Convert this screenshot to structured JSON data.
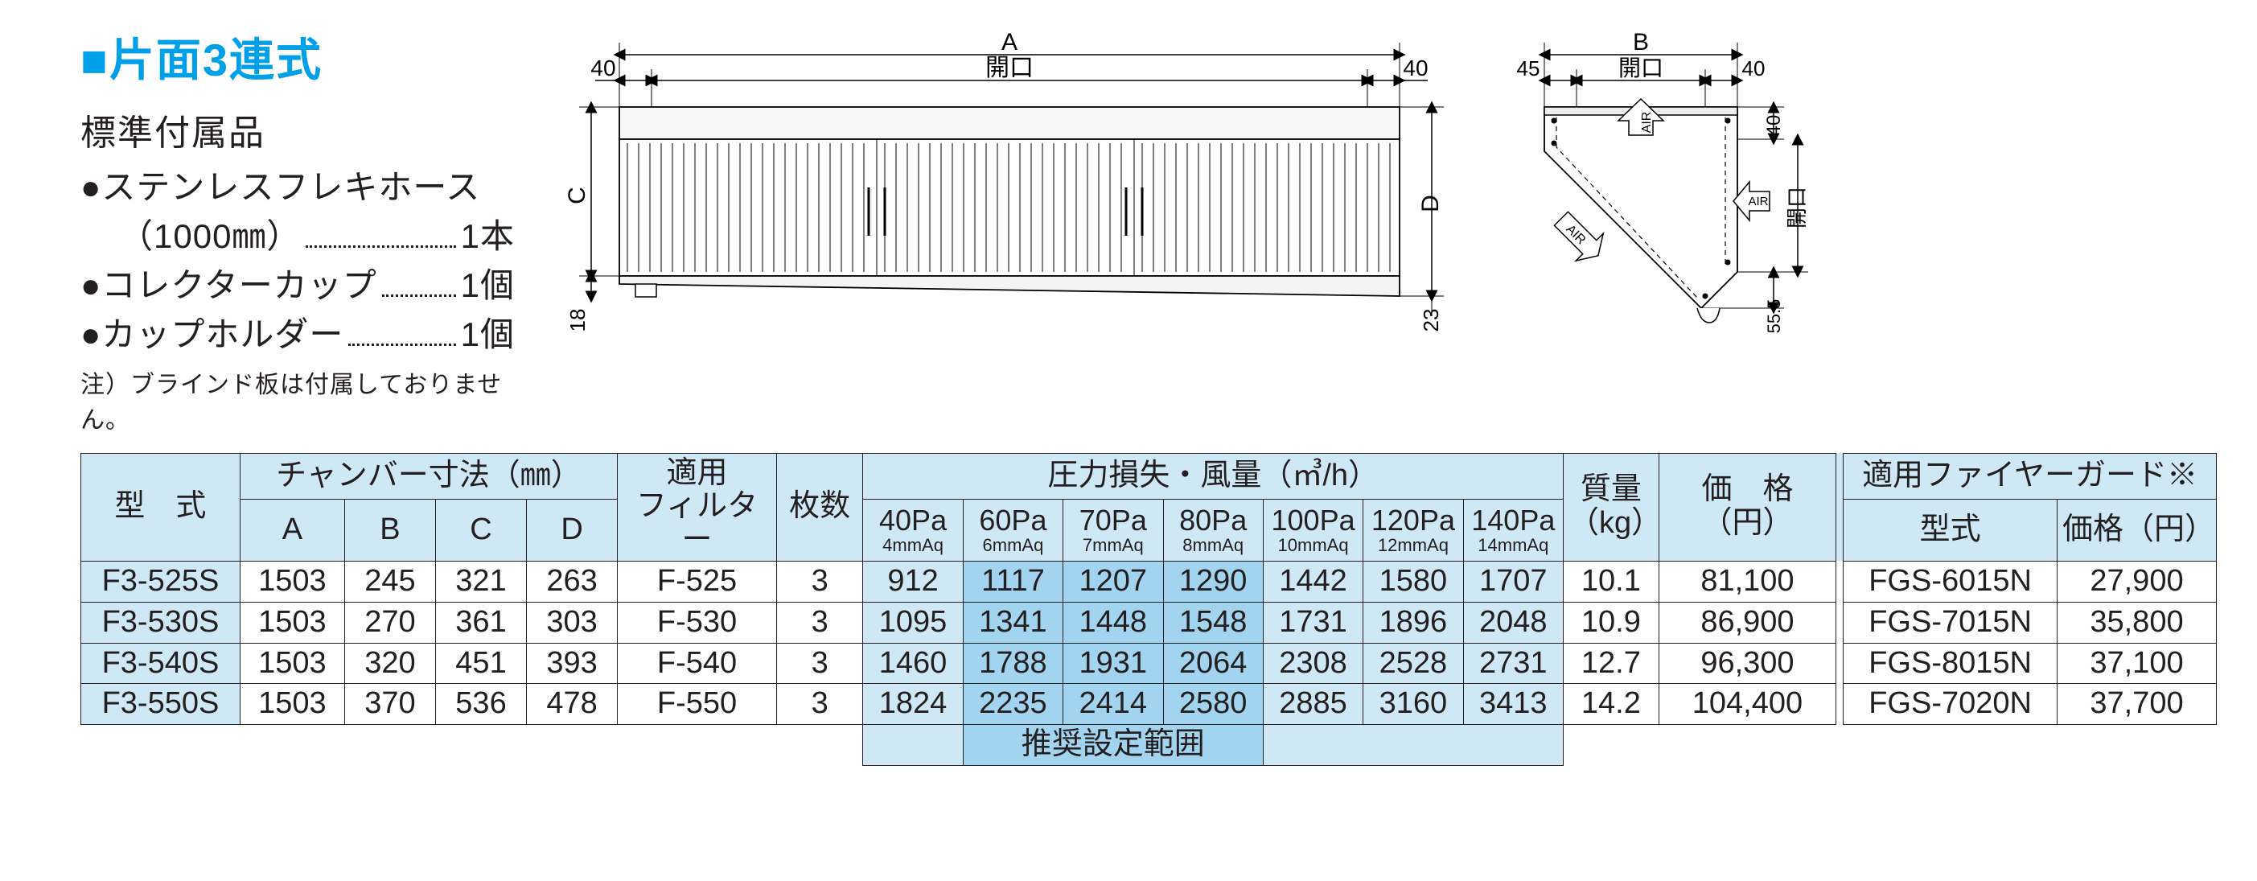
{
  "colors": {
    "accent_blue": "#00a0e9",
    "header_blue": "#cfe8f6",
    "range_blue": "#a2d4ef",
    "stroke": "#231f20",
    "bg": "#ffffff"
  },
  "title": "■片面3連式",
  "accessories_heading": "標準付属品",
  "accessories": [
    {
      "label": "●ステンレスフレキホース",
      "sub": "（1000㎜）",
      "qty": "1本"
    },
    {
      "label": "●コレクターカップ",
      "sub": "",
      "qty": "1個"
    },
    {
      "label": "●カップホルダー",
      "sub": "",
      "qty": "1個"
    }
  ],
  "footnote": "注）ブラインド板は付属しておりません。",
  "diagram": {
    "front": {
      "label_A": "A",
      "label_opening": "開口",
      "margin_left": "40",
      "margin_right": "40",
      "label_C": "C",
      "label_D": "D",
      "bottom_left": "18",
      "bottom_right": "23"
    },
    "side": {
      "label_B": "B",
      "label_opening": "開口",
      "margin_left": "45",
      "margin_right": "40",
      "top_gap": "40",
      "side_opening": "開口",
      "air_in": "AIR",
      "air_out": "AIR",
      "bottom_offset": "55.5"
    }
  },
  "table": {
    "headers": {
      "model": "型　式",
      "chamber_group": "チャンバー寸法（㎜）",
      "A": "A",
      "B": "B",
      "C": "C",
      "D": "D",
      "filter": "適用\nフィルター",
      "qty": "枚数",
      "pressure_group": "圧力損失・風量（㎥/h）",
      "pa": [
        {
          "pa": "40Pa",
          "aq": "4mmAq"
        },
        {
          "pa": "60Pa",
          "aq": "6mmAq"
        },
        {
          "pa": "70Pa",
          "aq": "7mmAq"
        },
        {
          "pa": "80Pa",
          "aq": "8mmAq"
        },
        {
          "pa": "100Pa",
          "aq": "10mmAq"
        },
        {
          "pa": "120Pa",
          "aq": "12mmAq"
        },
        {
          "pa": "140Pa",
          "aq": "14mmAq"
        }
      ],
      "mass": "質量\n（kg）",
      "price": "価　格\n（円）",
      "fg_group": "適用ファイヤーガード※",
      "fg_model": "型式",
      "fg_price": "価格（円）"
    },
    "rows": [
      {
        "model": "F3-525S",
        "A": "1503",
        "B": "245",
        "C": "321",
        "D": "263",
        "filter": "F-525",
        "qty": "3",
        "flow": [
          "912",
          "1117",
          "1207",
          "1290",
          "1442",
          "1580",
          "1707"
        ],
        "mass": "10.1",
        "price": "81,100",
        "fg_model": "FGS-6015N",
        "fg_price": "27,900"
      },
      {
        "model": "F3-530S",
        "A": "1503",
        "B": "270",
        "C": "361",
        "D": "303",
        "filter": "F-530",
        "qty": "3",
        "flow": [
          "1095",
          "1341",
          "1448",
          "1548",
          "1731",
          "1896",
          "2048"
        ],
        "mass": "10.9",
        "price": "86,900",
        "fg_model": "FGS-7015N",
        "fg_price": "35,800"
      },
      {
        "model": "F3-540S",
        "A": "1503",
        "B": "320",
        "C": "451",
        "D": "393",
        "filter": "F-540",
        "qty": "3",
        "flow": [
          "1460",
          "1788",
          "1931",
          "2064",
          "2308",
          "2528",
          "2731"
        ],
        "mass": "12.7",
        "price": "96,300",
        "fg_model": "FGS-8015N",
        "fg_price": "37,100"
      },
      {
        "model": "F3-550S",
        "A": "1503",
        "B": "370",
        "C": "536",
        "D": "478",
        "filter": "F-550",
        "qty": "3",
        "flow": [
          "1824",
          "2235",
          "2414",
          "2580",
          "2885",
          "3160",
          "3413"
        ],
        "mass": "14.2",
        "price": "104,400",
        "fg_model": "FGS-7020N",
        "fg_price": "37,700"
      }
    ],
    "recommended_label": "推奨設定範囲"
  }
}
